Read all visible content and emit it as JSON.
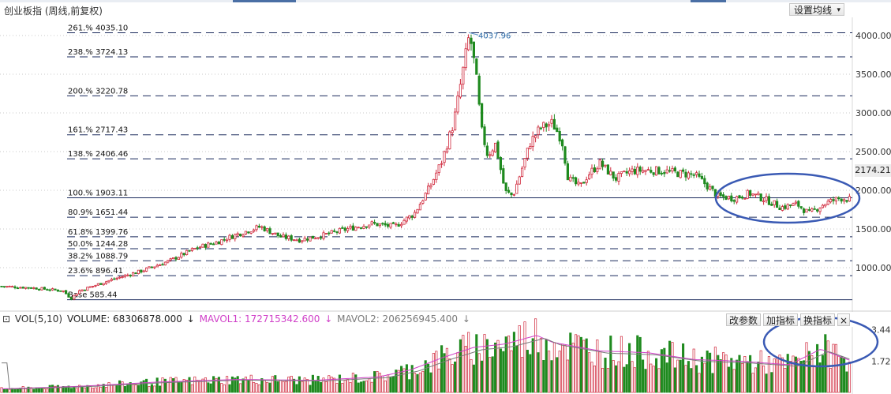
{
  "window": {
    "title": "创业板指 (周线,前复权)"
  },
  "toolbar": {
    "ma_settings_label": "设置均线",
    "caret": "▾"
  },
  "price_tag": "2174.21",
  "volume_header": {
    "vol_label": "VOL(5,10)",
    "volume_label": "VOLUME: 68306878.000",
    "mavol1_label": "MAVOL1: 172715342.600",
    "mavol2_label": "MAVOL2: 206256945.400",
    "arrow": "↓"
  },
  "volume_buttons": {
    "modify": "改参数",
    "add": "加指标",
    "switch": "换指标",
    "close": "×"
  },
  "colors": {
    "up": "#d0283c",
    "down": "#1f8a1f",
    "fib_line": "#1a2a5c",
    "mavol1": "#d040c8",
    "mavol2": "#7a7a7a",
    "highlight": "#3a5ab4"
  },
  "chart_data": [
    {
      "type": "candlestick",
      "title": "创业板指 (周线,前复权)",
      "ylim": [
        440,
        4100
      ],
      "yticks": [
        1000,
        1500,
        2000,
        2500,
        3000,
        3500,
        4000
      ],
      "ytick_labels": [
        "1000.00",
        "1500.00",
        "2000.00",
        "2500.00",
        "3000.00",
        "3500.00",
        "4000.00"
      ],
      "peak_label": "4037.96",
      "peak_value": 4037.96,
      "fibonacci_levels": [
        {
          "label": "261.% 4035.10",
          "value": 4035.1
        },
        {
          "label": "238.% 3724.13",
          "value": 3724.13
        },
        {
          "label": "200.% 3220.78",
          "value": 3220.78
        },
        {
          "label": "161.% 2717.43",
          "value": 2717.43
        },
        {
          "label": "138.% 2406.46",
          "value": 2406.46
        },
        {
          "label": "100.% 1903.11",
          "value": 1903.11
        },
        {
          "label": "80.9% 1651.44",
          "value": 1651.44
        },
        {
          "label": "61.8% 1399.76",
          "value": 1399.76
        },
        {
          "label": "50.0% 1244.28",
          "value": 1244.28
        },
        {
          "label": "38.2% 1088.79",
          "value": 1088.79
        },
        {
          "label": "23.6% 896.41",
          "value": 896.41
        },
        {
          "label": "Base 585.44",
          "value": 585.44
        }
      ],
      "close_path": [
        [
          0,
          760
        ],
        [
          40,
          740
        ],
        [
          80,
          700
        ],
        [
          90,
          600
        ],
        [
          100,
          700
        ],
        [
          140,
          840
        ],
        [
          180,
          960
        ],
        [
          215,
          1090
        ],
        [
          250,
          1260
        ],
        [
          275,
          1330
        ],
        [
          300,
          1430
        ],
        [
          330,
          1530
        ],
        [
          355,
          1400
        ],
        [
          380,
          1360
        ],
        [
          410,
          1420
        ],
        [
          440,
          1500
        ],
        [
          470,
          1570
        ],
        [
          500,
          1530
        ],
        [
          525,
          1700
        ],
        [
          545,
          2050
        ],
        [
          560,
          2380
        ],
        [
          575,
          2880
        ],
        [
          585,
          3450
        ],
        [
          595,
          4030
        ],
        [
          603,
          3500
        ],
        [
          610,
          2780
        ],
        [
          618,
          2450
        ],
        [
          628,
          2600
        ],
        [
          640,
          1980
        ],
        [
          650,
          1930
        ],
        [
          662,
          2300
        ],
        [
          672,
          2620
        ],
        [
          685,
          2810
        ],
        [
          700,
          2870
        ],
        [
          712,
          2650
        ],
        [
          720,
          2150
        ],
        [
          735,
          2040
        ],
        [
          745,
          2200
        ],
        [
          760,
          2350
        ],
        [
          780,
          2150
        ],
        [
          800,
          2250
        ],
        [
          820,
          2260
        ],
        [
          840,
          2250
        ],
        [
          860,
          2220
        ],
        [
          880,
          2200
        ],
        [
          895,
          2070
        ],
        [
          910,
          1920
        ],
        [
          930,
          1900
        ],
        [
          950,
          1960
        ],
        [
          970,
          1880
        ],
        [
          990,
          1780
        ],
        [
          1010,
          1820
        ],
        [
          1025,
          1700
        ],
        [
          1045,
          1830
        ],
        [
          1065,
          1900
        ],
        [
          1078,
          1880
        ]
      ]
    },
    {
      "type": "bar",
      "title": "VOL(5,10)",
      "ylim": [
        0,
        3.6
      ],
      "yticks": [
        1.72,
        3.44
      ],
      "ytick_labels": [
        "1.72",
        "3.44"
      ],
      "series": [
        {
          "name": "MAVOL1",
          "value": "172715342.600"
        },
        {
          "name": "MAVOL2",
          "value": "206256945.400"
        }
      ],
      "volume_profile": [
        [
          0,
          0.2
        ],
        [
          100,
          0.35
        ],
        [
          200,
          0.6
        ],
        [
          300,
          0.75
        ],
        [
          400,
          0.7
        ],
        [
          480,
          0.9
        ],
        [
          520,
          1.3
        ],
        [
          560,
          2.0
        ],
        [
          600,
          2.6
        ],
        [
          640,
          2.8
        ],
        [
          680,
          3.3
        ],
        [
          700,
          2.9
        ],
        [
          760,
          2.4
        ],
        [
          820,
          2.3
        ],
        [
          880,
          1.9
        ],
        [
          940,
          1.8
        ],
        [
          1000,
          1.6
        ],
        [
          1040,
          2.5
        ],
        [
          1080,
          1.8
        ]
      ]
    }
  ]
}
